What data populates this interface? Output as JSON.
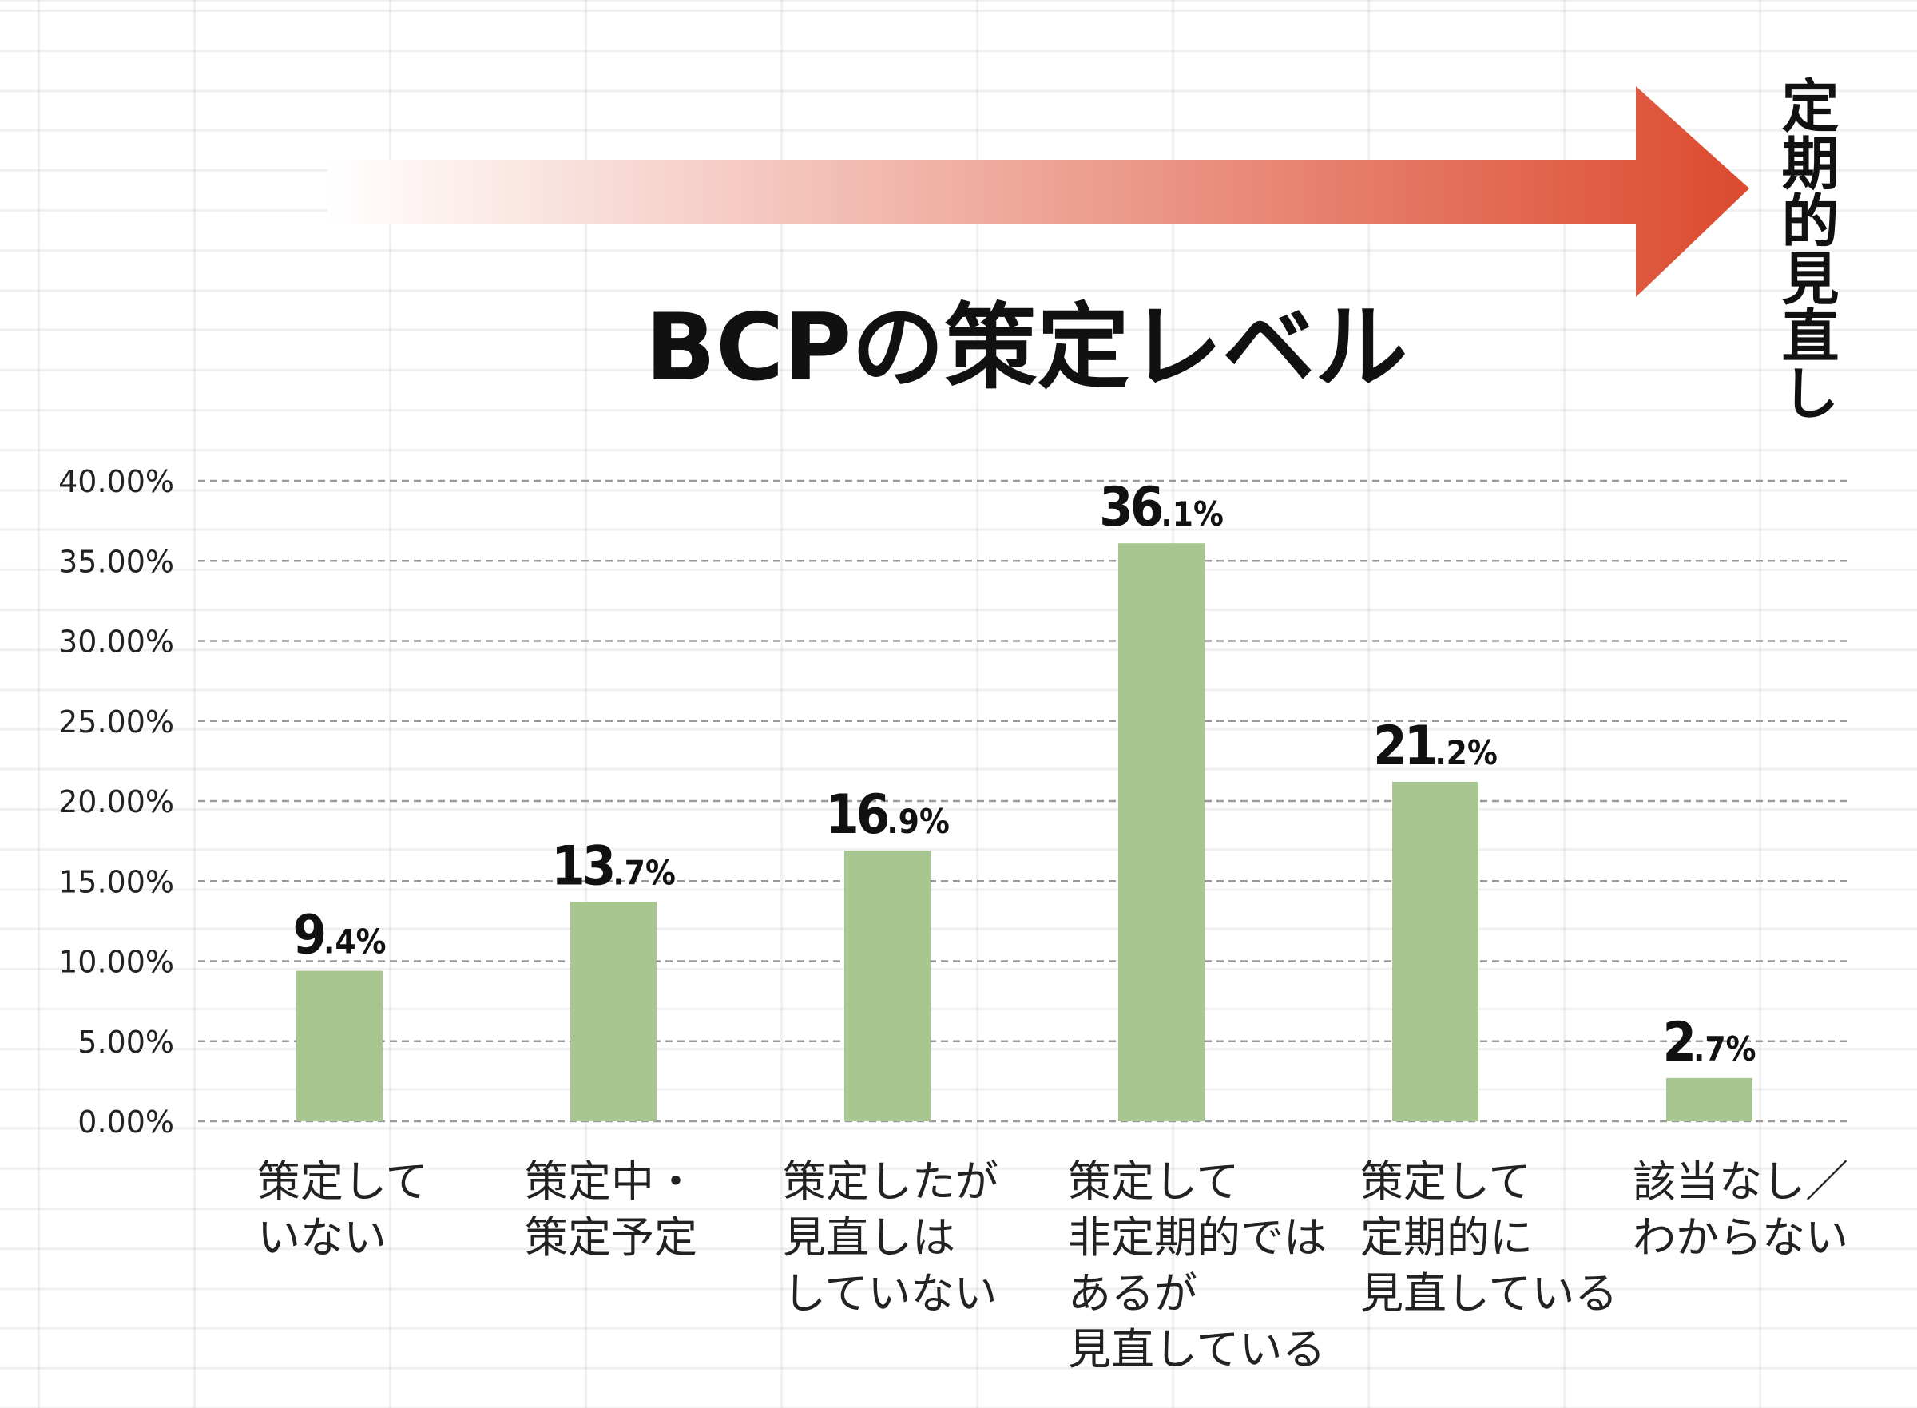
{
  "header": {
    "title": "BCPの策定レベル",
    "arrow_label": "定期的見直し"
  },
  "colors": {
    "bar": "#a8c690",
    "arrow_start": "#ffffff",
    "arrow_end": "#dc4a2f",
    "grid": "#9a9a9a"
  },
  "chart_data": {
    "type": "bar",
    "title": "BCPの策定レベル",
    "xlabel": "",
    "ylabel": "",
    "ylim": [
      0,
      40
    ],
    "grid": true,
    "y_ticks": [
      "0.00%",
      "5.00%",
      "10.00%",
      "15.00%",
      "20.00%",
      "25.00%",
      "30.00%",
      "35.00%",
      "40.00%"
    ],
    "categories": [
      "策定していない",
      "策定中・策定予定",
      "策定したが見直しはしていない",
      "策定して非定期的ではあるが見直している",
      "策定して定期的に見直している",
      "該当なし／わからない"
    ],
    "category_lines": [
      [
        "策定して",
        "いない"
      ],
      [
        "策定中・",
        "策定予定"
      ],
      [
        "策定したが",
        "見直しは",
        "していない"
      ],
      [
        "策定して",
        "非定期的では",
        "あるが",
        "見直している"
      ],
      [
        "策定して",
        "定期的に",
        "見直している"
      ],
      [
        "該当なし／",
        "わからない"
      ]
    ],
    "values": [
      9.4,
      13.7,
      16.9,
      36.1,
      21.2,
      2.7
    ],
    "value_labels": [
      [
        "9",
        ".4%"
      ],
      [
        "13",
        ".7%"
      ],
      [
        "16",
        ".9%"
      ],
      [
        "36",
        ".1%"
      ],
      [
        "21",
        ".2%"
      ],
      [
        "2",
        ".7%"
      ]
    ]
  }
}
